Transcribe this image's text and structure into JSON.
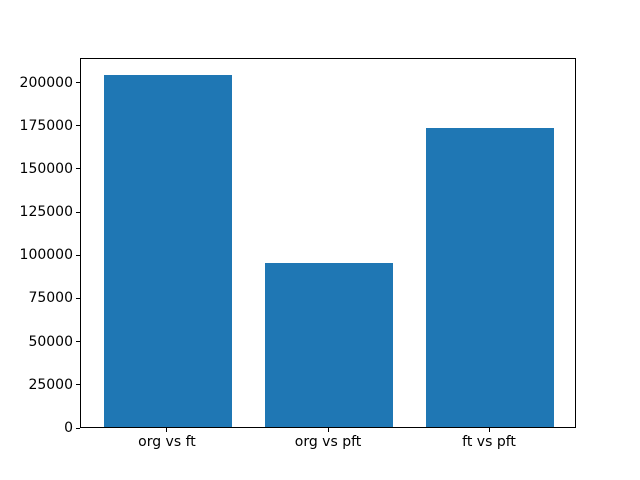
{
  "chart_data": {
    "type": "bar",
    "categories": [
      "org vs ft",
      "org vs pft",
      "ft vs pft"
    ],
    "values": [
      204000,
      95000,
      173000
    ],
    "title": "",
    "xlabel": "",
    "ylabel": "",
    "ylim": [
      0,
      214200
    ],
    "yticks": [
      0,
      25000,
      50000,
      75000,
      100000,
      125000,
      150000,
      175000,
      200000
    ],
    "bar_color": "#1f77b4",
    "grid": false,
    "legend": null
  }
}
